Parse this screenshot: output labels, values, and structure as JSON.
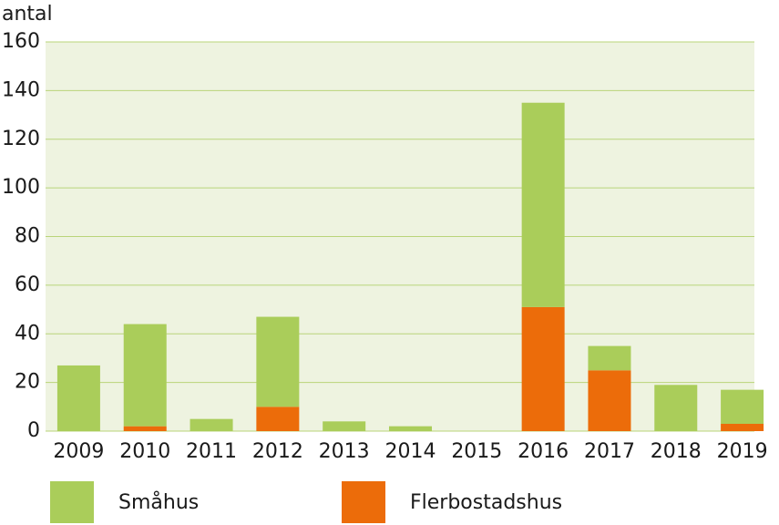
{
  "chart_data": {
    "type": "stacked_bar",
    "y_label": "antal",
    "categories": [
      "2009",
      "2010",
      "2011",
      "2012",
      "2013",
      "2014",
      "2015",
      "2016",
      "2017",
      "2018",
      "2019"
    ],
    "series": [
      {
        "name": "Flerbostadshus",
        "color": "#ec6c0a",
        "values": [
          0,
          2,
          0,
          10,
          0,
          0,
          0,
          51,
          25,
          0,
          3
        ]
      },
      {
        "name": "Småhus",
        "color": "#aacd5a",
        "values": [
          27,
          42,
          5,
          37,
          4,
          2,
          0,
          84,
          10,
          19,
          14
        ]
      }
    ],
    "ylim": [
      0,
      160
    ],
    "yticks": [
      0,
      20,
      40,
      60,
      80,
      100,
      120,
      140,
      160
    ],
    "grid": true
  }
}
